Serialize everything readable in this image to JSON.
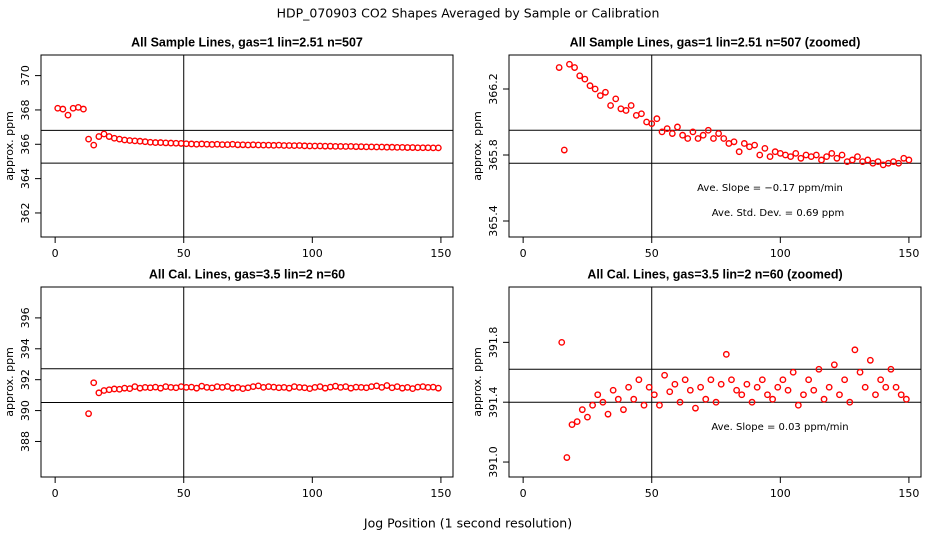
{
  "title": "HDP_070903  CO2 Shapes Averaged by Sample or Calibration",
  "x_label": "Jog Position (1 second resolution)",
  "chart_data": [
    {
      "type": "scatter",
      "title": "All Sample Lines, gas=1 lin=2.51 n=507",
      "y_label": "approx. ppm",
      "color": "#ff0000",
      "xlim": [
        -5.5,
        154.7
      ],
      "ylim": [
        360.6,
        371.2
      ],
      "xticks": [
        0,
        50,
        100,
        150
      ],
      "yticks": [
        362,
        364,
        366,
        368,
        370
      ],
      "vlines": [
        50
      ],
      "hlines": [
        366.81,
        364.9
      ],
      "annotations": [],
      "x": [
        1,
        3,
        5,
        7,
        9,
        11,
        13,
        15,
        17,
        19,
        21,
        23,
        25,
        27,
        29,
        31,
        33,
        35,
        37,
        39,
        41,
        43,
        45,
        47,
        49,
        51,
        53,
        55,
        57,
        59,
        61,
        63,
        65,
        67,
        69,
        71,
        73,
        75,
        77,
        79,
        81,
        83,
        85,
        87,
        89,
        91,
        93,
        95,
        97,
        99,
        101,
        103,
        105,
        107,
        109,
        111,
        113,
        115,
        117,
        119,
        121,
        123,
        125,
        127,
        129,
        131,
        133,
        135,
        137,
        139,
        141,
        143,
        145,
        147,
        149
      ],
      "values": [
        368.1,
        368.05,
        367.7,
        368.1,
        368.15,
        368.05,
        366.3,
        365.95,
        366.45,
        366.6,
        366.45,
        366.35,
        366.3,
        366.25,
        366.22,
        366.2,
        366.18,
        366.15,
        366.12,
        366.1,
        366.1,
        366.08,
        366.07,
        366.06,
        366.05,
        366.03,
        366.02,
        366.0,
        366.02,
        366.0,
        365.99,
        366.0,
        365.98,
        365.98,
        366.0,
        365.97,
        365.97,
        365.96,
        365.97,
        365.96,
        365.95,
        365.95,
        365.94,
        365.95,
        365.93,
        365.93,
        365.92,
        365.93,
        365.91,
        365.9,
        365.9,
        365.9,
        365.89,
        365.89,
        365.88,
        365.88,
        365.87,
        365.88,
        365.86,
        365.86,
        365.85,
        365.85,
        365.84,
        365.84,
        365.83,
        365.83,
        365.82,
        365.82,
        365.81,
        365.81,
        365.8,
        365.8,
        365.8,
        365.79,
        365.79
      ]
    },
    {
      "type": "scatter",
      "title": "All Sample Lines, gas=1 lin=2.51 n=507 (zoomed)",
      "y_label": "approx. ppm",
      "color": "#ff0000",
      "xlim": [
        -5.5,
        154.7
      ],
      "ylim": [
        365.303,
        366.406
      ],
      "xticks": [
        0,
        50,
        100,
        150
      ],
      "yticks": [
        365.4,
        365.8,
        366.2
      ],
      "vlines": [
        50
      ],
      "hlines": [
        365.95,
        365.75
      ],
      "annotations": [
        "Ave. Slope =  −0.17  ppm/min",
        "Ave. Std. Dev. =  0.69  ppm"
      ],
      "x": [
        14,
        16,
        18,
        20,
        22,
        24,
        26,
        28,
        30,
        32,
        34,
        36,
        38,
        40,
        42,
        44,
        46,
        48,
        50,
        52,
        54,
        56,
        58,
        60,
        62,
        64,
        66,
        68,
        70,
        72,
        74,
        76,
        78,
        80,
        82,
        84,
        86,
        88,
        90,
        92,
        94,
        96,
        98,
        100,
        102,
        104,
        106,
        108,
        110,
        112,
        114,
        116,
        118,
        120,
        122,
        124,
        126,
        128,
        130,
        132,
        134,
        136,
        138,
        140,
        142,
        144,
        146,
        148,
        150
      ],
      "values": [
        366.33,
        365.83,
        366.35,
        366.33,
        366.28,
        366.26,
        366.22,
        366.2,
        366.16,
        366.18,
        366.1,
        366.14,
        366.08,
        366.07,
        366.1,
        366.04,
        366.05,
        366.0,
        365.99,
        366.02,
        365.94,
        365.96,
        365.93,
        365.97,
        365.92,
        365.9,
        365.94,
        365.9,
        365.92,
        365.95,
        365.9,
        365.93,
        365.9,
        365.87,
        365.88,
        365.82,
        365.87,
        365.85,
        365.86,
        365.8,
        365.84,
        365.79,
        365.82,
        365.81,
        365.8,
        365.79,
        365.81,
        365.78,
        365.8,
        365.79,
        365.8,
        365.77,
        365.79,
        365.81,
        365.78,
        365.8,
        365.76,
        365.77,
        365.79,
        365.76,
        365.77,
        365.75,
        365.76,
        365.74,
        365.75,
        365.76,
        365.75,
        365.78,
        365.77
      ]
    },
    {
      "type": "scatter",
      "title": "All Cal. Lines, gas=3.5 lin=2 n=60",
      "y_label": "approx. ppm",
      "color": "#ff0000",
      "xlim": [
        -5.5,
        154.7
      ],
      "ylim": [
        385.7,
        398
      ],
      "xticks": [
        0,
        50,
        100,
        150
      ],
      "yticks": [
        388,
        390,
        392,
        394,
        396
      ],
      "vlines": [
        50
      ],
      "hlines": [
        392.71,
        390.52
      ],
      "annotations": [],
      "x": [
        13,
        15,
        17,
        19,
        21,
        23,
        25,
        27,
        29,
        31,
        33,
        35,
        37,
        39,
        41,
        43,
        45,
        47,
        49,
        51,
        53,
        55,
        57,
        59,
        61,
        63,
        65,
        67,
        69,
        71,
        73,
        75,
        77,
        79,
        81,
        83,
        85,
        87,
        89,
        91,
        93,
        95,
        97,
        99,
        101,
        103,
        105,
        107,
        109,
        111,
        113,
        115,
        117,
        119,
        121,
        123,
        125,
        127,
        129,
        131,
        133,
        135,
        137,
        139,
        141,
        143,
        145,
        147,
        149
      ],
      "values": [
        389.8,
        391.8,
        391.15,
        391.3,
        391.35,
        391.4,
        391.38,
        391.45,
        391.42,
        391.55,
        391.45,
        391.5,
        391.48,
        391.52,
        391.45,
        391.55,
        391.5,
        391.48,
        391.55,
        391.5,
        391.52,
        391.45,
        391.58,
        391.5,
        391.47,
        391.55,
        391.5,
        391.56,
        391.45,
        391.5,
        391.42,
        391.48,
        391.55,
        391.6,
        391.5,
        391.55,
        391.52,
        391.48,
        391.5,
        391.45,
        391.55,
        391.5,
        391.48,
        391.42,
        391.5,
        391.55,
        391.45,
        391.52,
        391.58,
        391.5,
        391.55,
        391.45,
        391.52,
        391.5,
        391.48,
        391.55,
        391.6,
        391.5,
        391.62,
        391.48,
        391.55,
        391.45,
        391.5,
        391.42,
        391.52,
        391.55,
        391.5,
        391.52,
        391.45
      ]
    },
    {
      "type": "scatter",
      "title": "All Cal. Lines, gas=3.5 lin=2 n=60 (zoomed)",
      "y_label": "approx. ppm",
      "color": "#ff0000",
      "xlim": [
        -5.5,
        154.7
      ],
      "ylim": [
        390.9,
        392.17
      ],
      "xticks": [
        0,
        50,
        100,
        150
      ],
      "yticks": [
        {
          "value": 391,
          "label": "391.0"
        },
        391.4,
        391.8
      ],
      "vlines": [
        50
      ],
      "hlines": [
        391.62,
        391.4
      ],
      "annotations": [
        "Ave. Slope =  0.03  ppm/min"
      ],
      "x": [
        15,
        17,
        19,
        21,
        23,
        25,
        27,
        29,
        31,
        33,
        35,
        37,
        39,
        41,
        43,
        45,
        47,
        49,
        51,
        53,
        55,
        57,
        59,
        61,
        63,
        65,
        67,
        69,
        71,
        73,
        75,
        77,
        79,
        81,
        83,
        85,
        87,
        89,
        91,
        93,
        95,
        97,
        99,
        101,
        103,
        105,
        107,
        109,
        111,
        113,
        115,
        117,
        119,
        121,
        123,
        125,
        127,
        129,
        131,
        133,
        135,
        137,
        139,
        141,
        143,
        145,
        147,
        149
      ],
      "values": [
        391.8,
        391.03,
        391.25,
        391.27,
        391.35,
        391.3,
        391.38,
        391.45,
        391.4,
        391.32,
        391.48,
        391.42,
        391.35,
        391.5,
        391.42,
        391.55,
        391.38,
        391.5,
        391.45,
        391.38,
        391.58,
        391.47,
        391.52,
        391.4,
        391.55,
        391.48,
        391.36,
        391.5,
        391.42,
        391.55,
        391.4,
        391.52,
        391.72,
        391.55,
        391.48,
        391.45,
        391.52,
        391.4,
        391.5,
        391.55,
        391.45,
        391.42,
        391.5,
        391.55,
        391.48,
        391.6,
        391.38,
        391.45,
        391.55,
        391.48,
        391.62,
        391.42,
        391.5,
        391.65,
        391.45,
        391.55,
        391.4,
        391.75,
        391.6,
        391.5,
        391.68,
        391.45,
        391.55,
        391.5,
        391.62,
        391.5,
        391.45,
        391.42
      ]
    }
  ]
}
